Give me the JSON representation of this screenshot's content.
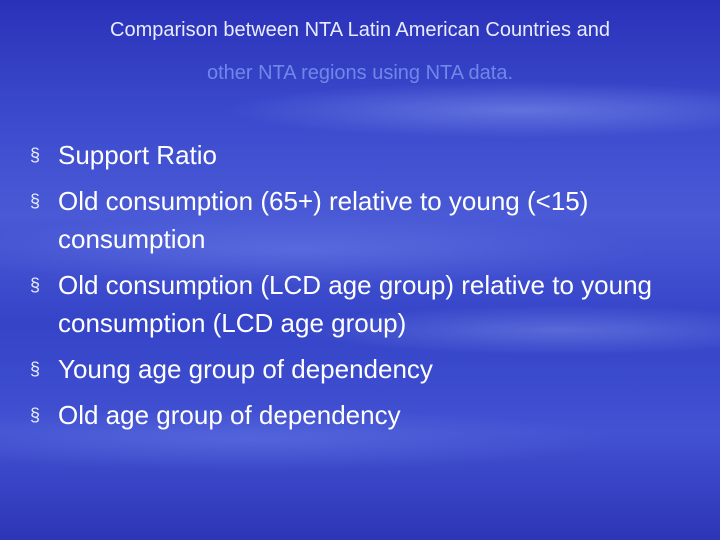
{
  "title": [
    "Comparison between NTA Latin American Countries and",
    "other NTA regions using NTA data."
  ],
  "bullet": "§",
  "items": [
    "Support Ratio",
    "Old consumption (65+) relative to young (<15) consumption",
    "Old consumption (LCD age group) relative to young consumption (LCD age group)",
    "Young age group of dependency",
    "Old age group of dependency"
  ]
}
